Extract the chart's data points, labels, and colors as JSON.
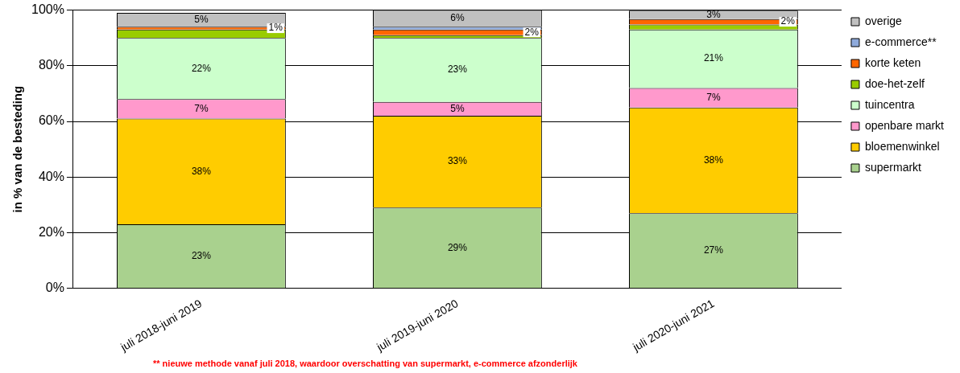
{
  "chart_data": {
    "type": "bar",
    "stacked": true,
    "ylabel": "in % van de besteding",
    "categories": [
      "juli 2018-juni 2019",
      "juli 2019-juni 2020",
      "juli 2020-juni 2021"
    ],
    "series": [
      {
        "name": "supermarkt",
        "color": "#a9d18e",
        "values": [
          23,
          29,
          27
        ],
        "value_labels": [
          "23%",
          "29%",
          "27%"
        ]
      },
      {
        "name": "bloemenwinkel",
        "color": "#ffcc00",
        "values": [
          38,
          33,
          38
        ],
        "value_labels": [
          "38%",
          "33%",
          "38%"
        ]
      },
      {
        "name": "openbare markt",
        "color": "#ff99cc",
        "values": [
          7,
          5,
          7
        ],
        "value_labels": [
          "7%",
          "5%",
          "7%"
        ]
      },
      {
        "name": "tuincentra",
        "color": "#ccffcc",
        "values": [
          22,
          23,
          21
        ],
        "value_labels": [
          "22%",
          "23%",
          "21%"
        ]
      },
      {
        "name": "doe-het-zelf",
        "color": "#99cc00",
        "values": [
          3,
          1,
          1.8
        ],
        "value_labels": [
          null,
          null,
          null
        ]
      },
      {
        "name": "korte keten",
        "color": "#ff6600",
        "values": [
          1,
          2,
          2
        ],
        "value_labels": [
          "1%",
          "2%",
          "2%"
        ]
      },
      {
        "name": "e-commerce**",
        "color": "#8eaadb",
        "values": [
          null,
          1,
          null
        ],
        "value_labels": [
          null,
          null,
          null
        ]
      },
      {
        "name": "overige",
        "color": "#c0c0c0",
        "values": [
          5,
          6,
          3
        ],
        "value_labels": [
          "5%",
          "6%",
          "3%"
        ]
      }
    ],
    "ylim": [
      0,
      100
    ],
    "yticks": [
      {
        "value": 0,
        "label": "0%"
      },
      {
        "value": 20,
        "label": "20%"
      },
      {
        "value": 40,
        "label": "40%"
      },
      {
        "value": 60,
        "label": "60%"
      },
      {
        "value": 80,
        "label": "80%"
      },
      {
        "value": 100,
        "label": "100%"
      }
    ],
    "grid": "y",
    "legend": "right",
    "annotations": [
      "** nieuwe methode vanaf juli 2018, waardoor overschatting van supermarkt, e-commerce afzonderlijk"
    ]
  }
}
